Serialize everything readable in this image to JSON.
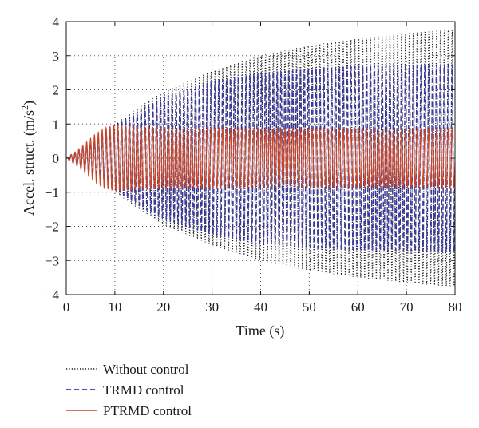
{
  "chart_data": {
    "type": "line",
    "xlabel": "Time (s)",
    "ylabel": "Accel. struct. (m/s2)",
    "ylabel_parts": {
      "main": "Accel. struct. (m/s",
      "superscript": "2",
      "close": ")"
    },
    "xlim": [
      0,
      80
    ],
    "ylim": [
      -4,
      4
    ],
    "xticks": [
      "0",
      "10",
      "20",
      "30",
      "40",
      "50",
      "60",
      "70",
      "80"
    ],
    "yticks": [
      "4",
      "3",
      "2",
      "1",
      "0",
      "−1",
      "−2",
      "−3",
      "−4"
    ],
    "grid": true,
    "legend_position": "below",
    "series": [
      {
        "name": "Without control",
        "color": "#1a1a1a",
        "style": "dotted",
        "envelope": {
          "t": [
            0,
            2,
            5,
            10,
            15,
            20,
            30,
            40,
            50,
            60,
            70,
            78
          ],
          "amp": [
            0,
            0.2,
            0.45,
            1.0,
            1.5,
            1.95,
            2.55,
            3.0,
            3.3,
            3.5,
            3.65,
            3.75
          ]
        }
      },
      {
        "name": "TRMD control",
        "color": "#3a3a9c",
        "style": "dashed",
        "envelope": {
          "t": [
            0,
            2,
            5,
            10,
            15,
            20,
            30,
            40,
            50,
            60,
            70,
            78
          ],
          "amp": [
            0,
            0.2,
            0.45,
            0.95,
            1.4,
            1.8,
            2.25,
            2.5,
            2.62,
            2.7,
            2.72,
            2.75
          ]
        }
      },
      {
        "name": "PTRMD control",
        "color": "#c8462a",
        "style": "solid",
        "envelope": {
          "t": [
            0,
            2,
            4,
            6,
            8,
            10,
            12,
            20,
            30,
            40,
            60,
            80
          ],
          "amp": [
            0,
            0.2,
            0.45,
            0.7,
            0.88,
            0.97,
            0.95,
            0.9,
            0.87,
            0.85,
            0.85,
            0.85
          ]
        }
      }
    ]
  }
}
